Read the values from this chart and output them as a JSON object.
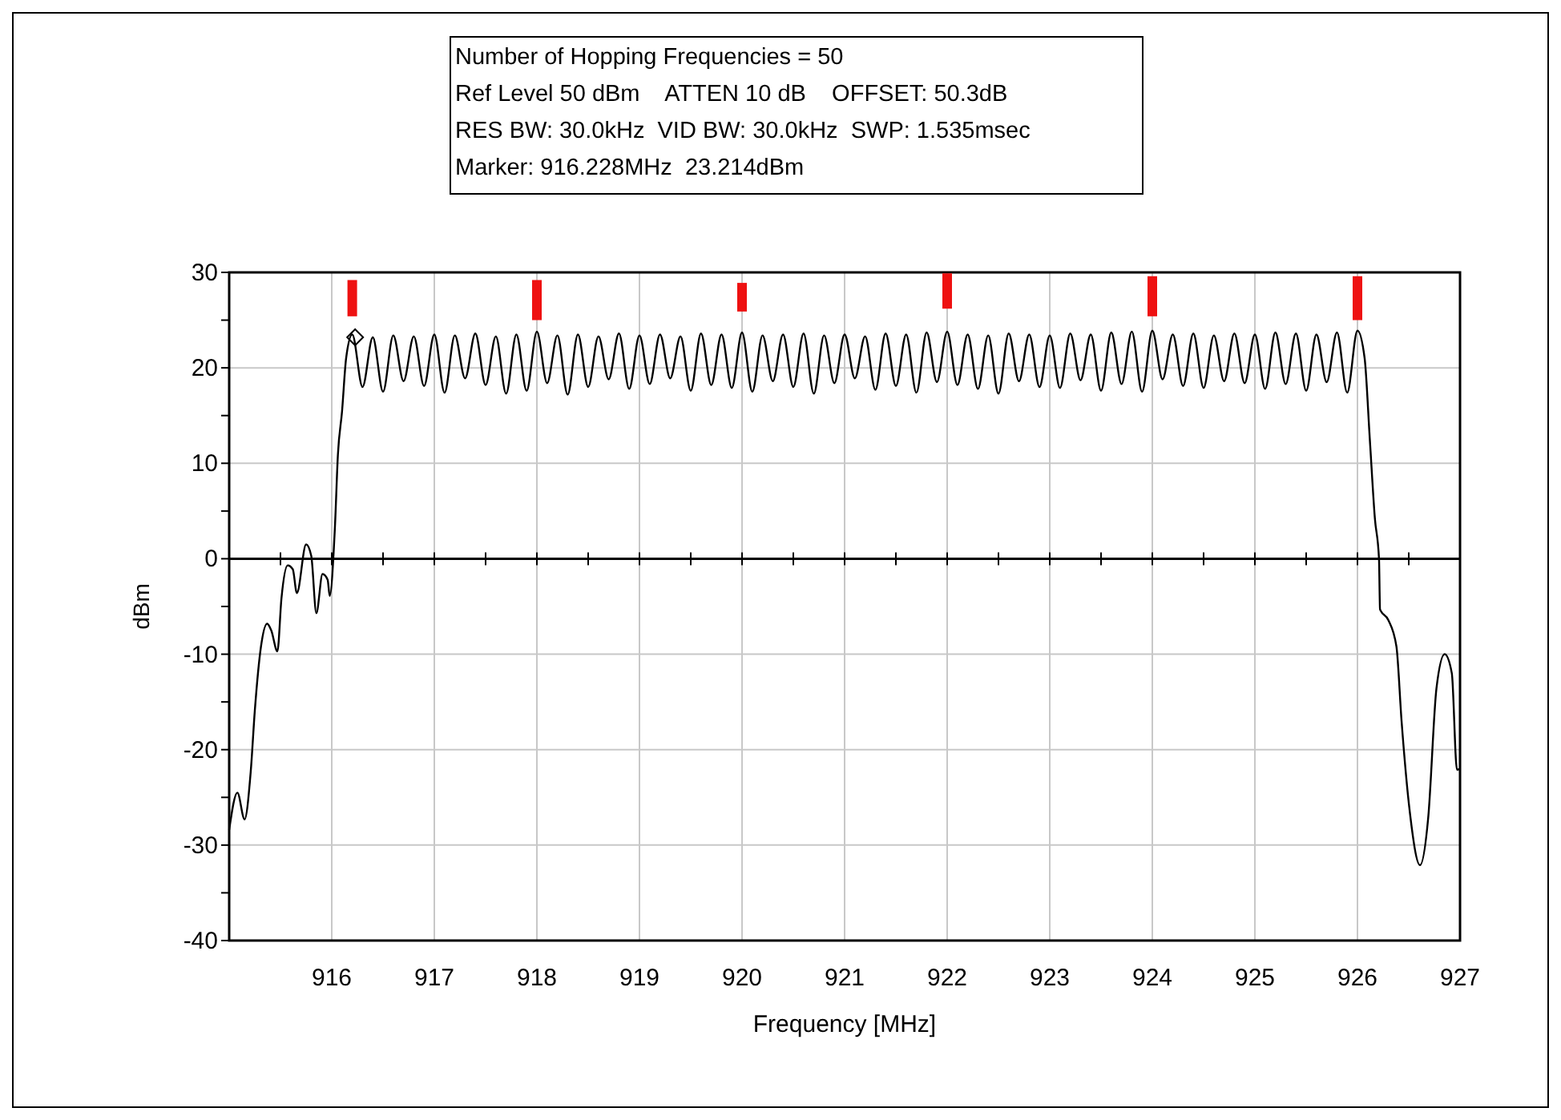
{
  "chart_data": {
    "type": "line",
    "xlabel": "Frequency [MHz]",
    "ylabel": "dBm",
    "annotations": [
      "Number of Hopping Frequencies = 50",
      "Ref Level 50 dBm    ATTEN 10 dB    OFFSET: 50.3dB",
      "RES BW: 30.0kHz  VID BW: 30.0kHz  SWP: 1.535msec",
      "Marker: 916.228MHz  23.214dBm"
    ],
    "xlim": [
      915,
      927
    ],
    "ylim": [
      -40,
      30
    ],
    "xticks": [
      {
        "value": 915.5,
        "label": null
      },
      916,
      {
        "value": 916.5,
        "label": null
      },
      917,
      {
        "value": 917.5,
        "label": null
      },
      918,
      {
        "value": 918.5,
        "label": null
      },
      919,
      {
        "value": 919.5,
        "label": null
      },
      920,
      {
        "value": 920.5,
        "label": null
      },
      921,
      {
        "value": 921.5,
        "label": null
      },
      922,
      {
        "value": 922.5,
        "label": null
      },
      923,
      {
        "value": 923.5,
        "label": null
      },
      924,
      {
        "value": 924.5,
        "label": null
      },
      925,
      {
        "value": 925.5,
        "label": null
      },
      926,
      {
        "value": 926.5,
        "label": null
      },
      927
    ],
    "yticks": [
      -40,
      {
        "value": -35,
        "label": null
      },
      -30,
      {
        "value": -25,
        "label": null
      },
      -20,
      {
        "value": -15,
        "label": null
      },
      -10,
      {
        "value": -5,
        "label": null
      },
      0,
      {
        "value": 5,
        "label": null
      },
      10,
      {
        "value": 15,
        "label": null
      },
      20,
      {
        "value": 25,
        "label": null
      },
      30
    ],
    "grid": true,
    "series": [
      {
        "color": "#000000",
        "marker": "none",
        "line_style": "solid",
        "x": [
          915.0,
          915.08,
          915.15,
          915.21,
          915.25,
          915.31,
          915.37,
          915.41,
          915.47,
          915.51,
          915.57,
          915.62,
          915.66,
          915.75,
          915.8,
          915.85,
          915.91,
          915.96,
          915.98,
          916.03,
          916.06,
          916.1,
          916.14,
          916.2,
          916.3,
          916.4,
          916.5,
          916.6,
          916.7,
          916.8,
          916.9,
          917.0,
          917.1,
          917.2,
          917.3,
          917.4,
          917.5,
          917.6,
          917.7,
          917.8,
          917.9,
          918.0,
          918.1,
          918.2,
          918.3,
          918.4,
          918.5,
          918.6,
          918.7,
          918.8,
          918.9,
          919.0,
          919.1,
          919.2,
          919.3,
          919.4,
          919.5,
          919.6,
          919.7,
          919.8,
          919.9,
          920.0,
          920.1,
          920.2,
          920.3,
          920.4,
          920.5,
          920.6,
          920.7,
          920.8,
          920.9,
          921.0,
          921.1,
          921.2,
          921.3,
          921.4,
          921.5,
          921.6,
          921.7,
          921.8,
          921.9,
          922.0,
          922.1,
          922.2,
          922.3,
          922.4,
          922.5,
          922.6,
          922.7,
          922.8,
          922.9,
          923.0,
          923.1,
          923.2,
          923.3,
          923.4,
          923.5,
          923.6,
          923.7,
          923.8,
          923.9,
          924.0,
          924.1,
          924.2,
          924.3,
          924.4,
          924.5,
          924.6,
          924.7,
          924.8,
          924.9,
          925.0,
          925.1,
          925.2,
          925.3,
          925.4,
          925.5,
          925.6,
          925.7,
          925.8,
          925.9,
          926.0,
          926.07,
          926.12,
          926.17,
          926.21,
          926.22,
          926.3,
          926.38,
          926.43,
          926.51,
          926.61,
          926.69,
          926.77,
          926.85,
          926.92,
          926.97,
          927.0
        ],
        "values": [
          -28.4,
          -24.5,
          -27.3,
          -22.3,
          -15.9,
          -9.2,
          -6.8,
          -7.5,
          -9.7,
          -4.1,
          -0.7,
          -1.1,
          -3.6,
          1.5,
          0.3,
          -5.7,
          -1.6,
          -2.2,
          -3.9,
          3.1,
          10.9,
          15.4,
          21,
          23.5,
          18.0,
          23.2,
          17.5,
          23.4,
          18.6,
          23.3,
          18.1,
          23.5,
          17.4,
          23.4,
          18.9,
          23.6,
          18.2,
          23.3,
          17.3,
          23.5,
          17.6,
          23.8,
          18.4,
          23.4,
          17.2,
          23.5,
          18.0,
          23.3,
          18.8,
          23.6,
          17.8,
          23.4,
          18.3,
          23.5,
          18.9,
          23.3,
          17.6,
          23.6,
          18.2,
          23.5,
          17.9,
          23.7,
          17.5,
          23.4,
          18.6,
          23.5,
          18.0,
          23.6,
          17.3,
          23.4,
          18.4,
          23.5,
          18.9,
          23.3,
          17.7,
          23.6,
          18.1,
          23.5,
          17.4,
          23.7,
          18.5,
          23.8,
          18.2,
          23.5,
          17.8,
          23.4,
          17.3,
          23.6,
          18.6,
          23.5,
          18.0,
          23.4,
          17.9,
          23.6,
          18.7,
          23.5,
          17.6,
          23.7,
          18.3,
          23.8,
          17.5,
          23.9,
          18.8,
          23.5,
          18.1,
          23.6,
          17.9,
          23.4,
          18.6,
          23.6,
          18.4,
          23.5,
          17.8,
          23.7,
          18.3,
          23.6,
          17.6,
          23.5,
          18.5,
          23.7,
          17.4,
          23.9,
          21,
          12.6,
          4.2,
          0,
          -5.3,
          -6.4,
          -9.2,
          -17,
          -26.5,
          -32.1,
          -27.1,
          -13.6,
          -10,
          -12,
          -22.1,
          -22
        ]
      },
      {
        "type": "scatter",
        "color": "#000000",
        "marker": "diamond",
        "x": [
          916.228
        ],
        "values": [
          23.2
        ]
      },
      {
        "type": "bar",
        "color": "#ee1111",
        "x": [
          916.2,
          918,
          920,
          922,
          924,
          926
        ],
        "base": [
          25.4,
          25.0,
          25.9,
          26.2,
          25.4,
          25.0
        ],
        "values": [
          3.8,
          4.2,
          3.0,
          3.7,
          4.2,
          4.6
        ]
      }
    ]
  }
}
